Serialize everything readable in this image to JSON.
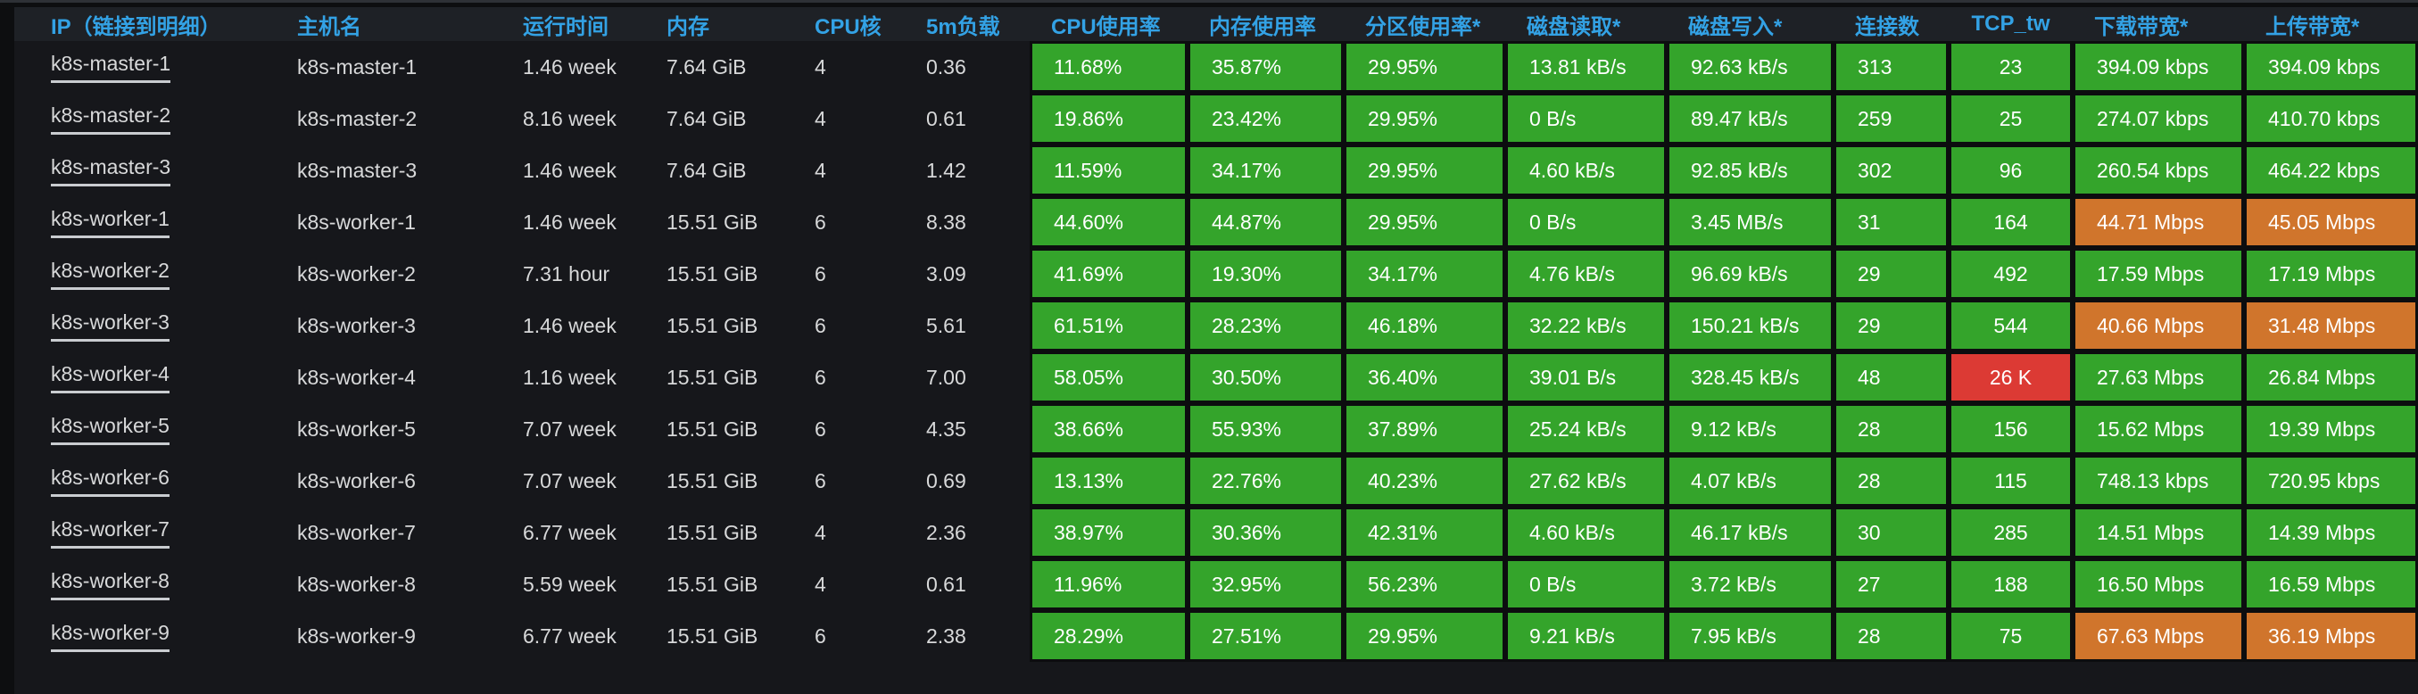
{
  "colors": {
    "green": "#34a42b",
    "orange": "#d0752c",
    "red": "#dc3a34",
    "header_text": "#33a2e5"
  },
  "table": {
    "columns": [
      {
        "id": "ip",
        "label": "IP（链接到明细）",
        "metric": false,
        "link": true
      },
      {
        "id": "hostname",
        "label": "主机名",
        "metric": false
      },
      {
        "id": "uptime",
        "label": "运行时间",
        "metric": false
      },
      {
        "id": "memory",
        "label": "内存",
        "metric": false
      },
      {
        "id": "cpu_cores",
        "label": "CPU核",
        "metric": false
      },
      {
        "id": "load_5m",
        "label": "5m负载",
        "metric": false
      },
      {
        "id": "cpu_usage",
        "label": "CPU使用率",
        "metric": true
      },
      {
        "id": "mem_usage",
        "label": "内存使用率",
        "metric": true
      },
      {
        "id": "partition_usage",
        "label": "分区使用率*",
        "metric": true
      },
      {
        "id": "disk_read",
        "label": "磁盘读取*",
        "metric": true
      },
      {
        "id": "disk_write",
        "label": "磁盘写入*",
        "metric": true
      },
      {
        "id": "connections",
        "label": "连接数",
        "metric": true
      },
      {
        "id": "tcp_tw",
        "label": "TCP_tw",
        "metric": true,
        "align": "center"
      },
      {
        "id": "download_bw",
        "label": "下载带宽*",
        "metric": true
      },
      {
        "id": "upload_bw",
        "label": "上传带宽*",
        "metric": true
      }
    ],
    "rows": [
      {
        "values": [
          "k8s-master-1",
          "k8s-master-1",
          "1.46 week",
          "7.64 GiB",
          "4",
          "0.36",
          "11.68%",
          "35.87%",
          "29.95%",
          "13.81 kB/s",
          "92.63 kB/s",
          "313",
          "23",
          "394.09 kbps",
          "394.09 kbps"
        ],
        "states": {}
      },
      {
        "values": [
          "k8s-master-2",
          "k8s-master-2",
          "8.16 week",
          "7.64 GiB",
          "4",
          "0.61",
          "19.86%",
          "23.42%",
          "29.95%",
          "0 B/s",
          "89.47 kB/s",
          "259",
          "25",
          "274.07 kbps",
          "410.70 kbps"
        ],
        "states": {}
      },
      {
        "values": [
          "k8s-master-3",
          "k8s-master-3",
          "1.46 week",
          "7.64 GiB",
          "4",
          "1.42",
          "11.59%",
          "34.17%",
          "29.95%",
          "4.60 kB/s",
          "92.85 kB/s",
          "302",
          "96",
          "260.54 kbps",
          "464.22 kbps"
        ],
        "states": {}
      },
      {
        "values": [
          "k8s-worker-1",
          "k8s-worker-1",
          "1.46 week",
          "15.51 GiB",
          "6",
          "8.38",
          "44.60%",
          "44.87%",
          "29.95%",
          "0 B/s",
          "3.45 MB/s",
          "31",
          "164",
          "44.71 Mbps",
          "45.05 Mbps"
        ],
        "states": {
          "download_bw": "orange",
          "upload_bw": "orange"
        }
      },
      {
        "values": [
          "k8s-worker-2",
          "k8s-worker-2",
          "7.31 hour",
          "15.51 GiB",
          "6",
          "3.09",
          "41.69%",
          "19.30%",
          "34.17%",
          "4.76 kB/s",
          "96.69 kB/s",
          "29",
          "492",
          "17.59 Mbps",
          "17.19 Mbps"
        ],
        "states": {}
      },
      {
        "values": [
          "k8s-worker-3",
          "k8s-worker-3",
          "1.46 week",
          "15.51 GiB",
          "6",
          "5.61",
          "61.51%",
          "28.23%",
          "46.18%",
          "32.22 kB/s",
          "150.21 kB/s",
          "29",
          "544",
          "40.66 Mbps",
          "31.48 Mbps"
        ],
        "states": {
          "download_bw": "orange",
          "upload_bw": "orange"
        }
      },
      {
        "values": [
          "k8s-worker-4",
          "k8s-worker-4",
          "1.16 week",
          "15.51 GiB",
          "6",
          "7.00",
          "58.05%",
          "30.50%",
          "36.40%",
          "39.01 B/s",
          "328.45 kB/s",
          "48",
          "26 K",
          "27.63 Mbps",
          "26.84 Mbps"
        ],
        "states": {
          "tcp_tw": "red"
        }
      },
      {
        "values": [
          "k8s-worker-5",
          "k8s-worker-5",
          "7.07 week",
          "15.51 GiB",
          "6",
          "4.35",
          "38.66%",
          "55.93%",
          "37.89%",
          "25.24 kB/s",
          "9.12 kB/s",
          "28",
          "156",
          "15.62 Mbps",
          "19.39 Mbps"
        ],
        "states": {}
      },
      {
        "values": [
          "k8s-worker-6",
          "k8s-worker-6",
          "7.07 week",
          "15.51 GiB",
          "6",
          "0.69",
          "13.13%",
          "22.76%",
          "40.23%",
          "27.62 kB/s",
          "4.07 kB/s",
          "28",
          "115",
          "748.13 kbps",
          "720.95 kbps"
        ],
        "states": {}
      },
      {
        "values": [
          "k8s-worker-7",
          "k8s-worker-7",
          "6.77 week",
          "15.51 GiB",
          "4",
          "2.36",
          "38.97%",
          "30.36%",
          "42.31%",
          "4.60 kB/s",
          "46.17 kB/s",
          "30",
          "285",
          "14.51 Mbps",
          "14.39 Mbps"
        ],
        "states": {}
      },
      {
        "values": [
          "k8s-worker-8",
          "k8s-worker-8",
          "5.59 week",
          "15.51 GiB",
          "4",
          "0.61",
          "11.96%",
          "32.95%",
          "56.23%",
          "0 B/s",
          "3.72 kB/s",
          "27",
          "188",
          "16.50 Mbps",
          "16.59 Mbps"
        ],
        "states": {}
      },
      {
        "values": [
          "k8s-worker-9",
          "k8s-worker-9",
          "6.77 week",
          "15.51 GiB",
          "6",
          "2.38",
          "28.29%",
          "27.51%",
          "29.95%",
          "9.21 kB/s",
          "7.95 kB/s",
          "28",
          "75",
          "67.63 Mbps",
          "36.19 Mbps"
        ],
        "states": {
          "download_bw": "orange",
          "upload_bw": "orange"
        }
      }
    ]
  }
}
